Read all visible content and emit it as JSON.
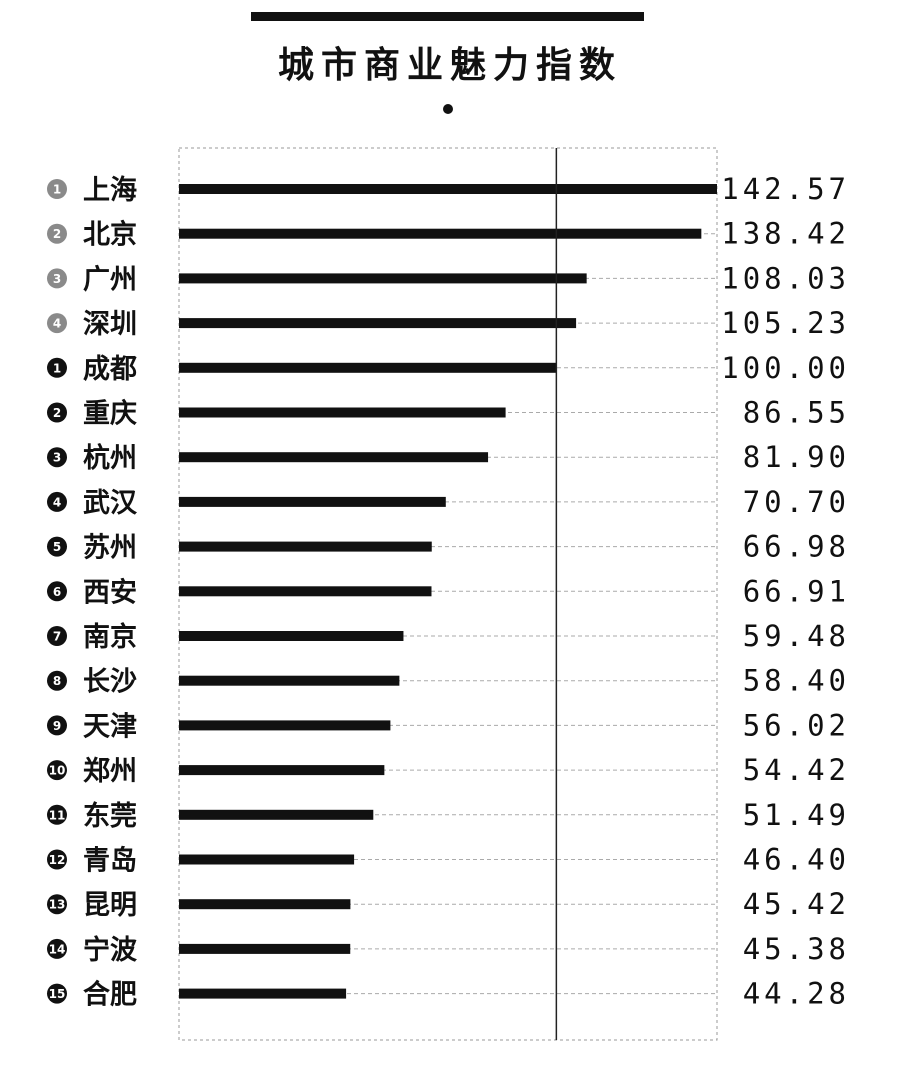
{
  "title": "城市商业魅力指数",
  "chart_data": {
    "type": "bar",
    "orientation": "horizontal",
    "title": "城市商业魅力指数",
    "xlim": [
      0,
      142.57
    ],
    "reference_value": 100.0,
    "grid": "dashed row guides",
    "legend": "none",
    "tier1_color": "#8a8a8a",
    "tier2_color": "#111111",
    "rows": [
      {
        "rank": "1",
        "city": "上海",
        "value": 142.57,
        "value_label": "142.57",
        "tier": 1
      },
      {
        "rank": "2",
        "city": "北京",
        "value": 138.42,
        "value_label": "138.42",
        "tier": 1
      },
      {
        "rank": "3",
        "city": "广州",
        "value": 108.03,
        "value_label": "108.03",
        "tier": 1
      },
      {
        "rank": "4",
        "city": "深圳",
        "value": 105.23,
        "value_label": "105.23",
        "tier": 1
      },
      {
        "rank": "1",
        "city": "成都",
        "value": 100.0,
        "value_label": "100.00",
        "tier": 2
      },
      {
        "rank": "2",
        "city": "重庆",
        "value": 86.55,
        "value_label": "86.55",
        "tier": 2
      },
      {
        "rank": "3",
        "city": "杭州",
        "value": 81.9,
        "value_label": "81.90",
        "tier": 2
      },
      {
        "rank": "4",
        "city": "武汉",
        "value": 70.7,
        "value_label": "70.70",
        "tier": 2
      },
      {
        "rank": "5",
        "city": "苏州",
        "value": 66.98,
        "value_label": "66.98",
        "tier": 2
      },
      {
        "rank": "6",
        "city": "西安",
        "value": 66.91,
        "value_label": "66.91",
        "tier": 2
      },
      {
        "rank": "7",
        "city": "南京",
        "value": 59.48,
        "value_label": "59.48",
        "tier": 2
      },
      {
        "rank": "8",
        "city": "长沙",
        "value": 58.4,
        "value_label": "58.40",
        "tier": 2
      },
      {
        "rank": "9",
        "city": "天津",
        "value": 56.02,
        "value_label": "56.02",
        "tier": 2
      },
      {
        "rank": "10",
        "city": "郑州",
        "value": 54.42,
        "value_label": "54.42",
        "tier": 2
      },
      {
        "rank": "11",
        "city": "东莞",
        "value": 51.49,
        "value_label": "51.49",
        "tier": 2
      },
      {
        "rank": "12",
        "city": "青岛",
        "value": 46.4,
        "value_label": "46.40",
        "tier": 2
      },
      {
        "rank": "13",
        "city": "昆明",
        "value": 45.42,
        "value_label": "45.42",
        "tier": 2
      },
      {
        "rank": "14",
        "city": "宁波",
        "value": 45.38,
        "value_label": "45.38",
        "tier": 2
      },
      {
        "rank": "15",
        "city": "合肥",
        "value": 44.28,
        "value_label": "44.28",
        "tier": 2
      }
    ]
  }
}
